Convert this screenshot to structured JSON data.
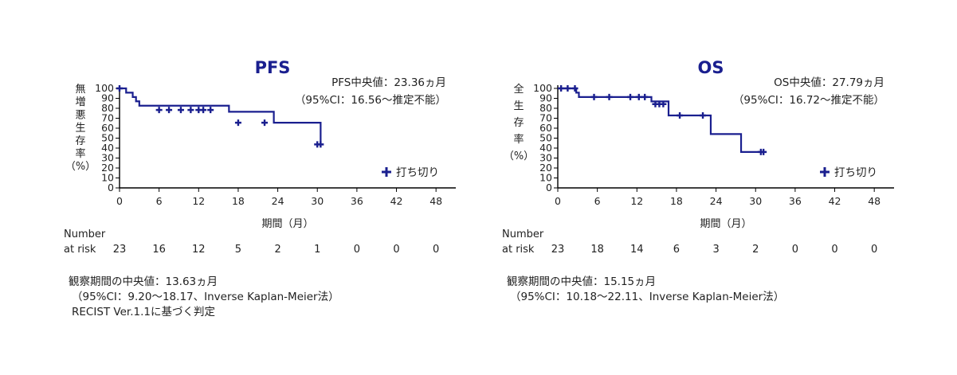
{
  "chart_data": [
    {
      "type": "line",
      "subtype": "kaplan-meier",
      "title": "PFS",
      "median_text": "PFS中央値：23.36ヵ月",
      "ci_text": "（95%CI：16.56〜推定不能）",
      "ylabel": [
        "無",
        "増",
        "悪",
        "生",
        "存",
        "率",
        "（%）"
      ],
      "xlabel": "期間（月）",
      "xticks": [
        0,
        6,
        12,
        18,
        24,
        30,
        36,
        42,
        48
      ],
      "yticks": [
        0,
        10,
        20,
        30,
        40,
        50,
        60,
        70,
        80,
        90,
        100
      ],
      "xlim": [
        0,
        51
      ],
      "ylim": [
        0,
        100
      ],
      "legend": "打ち切り",
      "series": [
        {
          "steps": [
            [
              0,
              100
            ],
            [
              1,
              95.7
            ],
            [
              2,
              91.3
            ],
            [
              2.5,
              87
            ],
            [
              3,
              82.6
            ],
            [
              16.6,
              76.5
            ],
            [
              23.4,
              65.5
            ],
            [
              30.5,
              43.7
            ]
          ],
          "censored": [
            [
              0,
              100
            ],
            [
              6,
              78.3
            ],
            [
              7.5,
              78.3
            ],
            [
              9.3,
              78.3
            ],
            [
              10.8,
              78.3
            ],
            [
              12,
              78.3
            ],
            [
              12.7,
              78.3
            ],
            [
              13.8,
              78.3
            ],
            [
              18,
              65.5
            ],
            [
              22,
              65.5
            ],
            [
              30,
              43.7
            ],
            [
              30.5,
              43.7
            ]
          ]
        }
      ],
      "risk_table": {
        "label": [
          "Number",
          "at risk"
        ],
        "times": [
          0,
          6,
          12,
          18,
          24,
          30,
          36,
          42,
          48
        ],
        "values": [
          "23",
          "16",
          "12",
          "5",
          "2",
          "1",
          "0",
          "0",
          "0"
        ]
      },
      "notes": [
        "観察期間の中央値：13.63ヵ月",
        "（95%CI：9.20〜18.17、Inverse Kaplan-Meier法）",
        "RECIST Ver.1.1に基づく判定"
      ]
    },
    {
      "type": "line",
      "subtype": "kaplan-meier",
      "title": "OS",
      "median_text": "OS中央値：27.79ヵ月",
      "ci_text": "（95%CI：16.72〜推定不能）",
      "ylabel": [
        "全",
        "生",
        "存",
        "率",
        "（%）"
      ],
      "xlabel": "期間（月）",
      "xticks": [
        0,
        6,
        12,
        18,
        24,
        30,
        36,
        42,
        48
      ],
      "yticks": [
        0,
        10,
        20,
        30,
        40,
        50,
        60,
        70,
        80,
        90,
        100
      ],
      "xlim": [
        0,
        51
      ],
      "ylim": [
        0,
        100
      ],
      "legend": "打ち切り",
      "series": [
        {
          "steps": [
            [
              0,
              100
            ],
            [
              2.8,
              95.7
            ],
            [
              3.2,
              91.3
            ],
            [
              14.2,
              86.9
            ],
            [
              16.8,
              72.8
            ],
            [
              23.2,
              54.1
            ],
            [
              27.8,
              36.1
            ],
            [
              31.2,
              36.1
            ]
          ],
          "censored": [
            [
              0.5,
              100
            ],
            [
              1.5,
              100
            ],
            [
              2.6,
              100
            ],
            [
              5.5,
              91.3
            ],
            [
              7.8,
              91.3
            ],
            [
              11,
              91.3
            ],
            [
              12.3,
              91.3
            ],
            [
              13.2,
              91.3
            ],
            [
              14.8,
              84.2
            ],
            [
              15.4,
              84.2
            ],
            [
              16,
              84.2
            ],
            [
              18.5,
              72.8
            ],
            [
              22,
              72.8
            ],
            [
              30.8,
              36.1
            ],
            [
              31.2,
              36.1
            ]
          ]
        }
      ],
      "risk_table": {
        "label": [
          "Number",
          "at risk"
        ],
        "times": [
          0,
          6,
          12,
          18,
          24,
          30,
          36,
          42,
          48
        ],
        "values": [
          "23",
          "18",
          "14",
          "6",
          "3",
          "2",
          "0",
          "0",
          "0"
        ]
      },
      "notes": [
        "観察期間の中央値：15.15ヵ月",
        "（95%CI：10.18〜22.11、Inverse Kaplan-Meier法）"
      ]
    }
  ],
  "colors": {
    "curve": "#1a1f8f",
    "axis": "#000000",
    "text": "#222222"
  },
  "icons": {
    "legend": "plus-censor-icon"
  }
}
